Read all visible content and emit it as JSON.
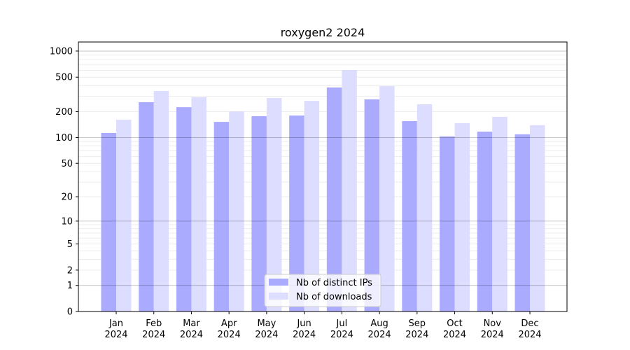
{
  "chart_data": {
    "type": "bar",
    "title": "roxygen2 2024",
    "xlabel": "",
    "ylabel": "",
    "yscale": "symlog",
    "ylim": [
      0,
      1270
    ],
    "yticks": [
      0,
      1,
      2,
      5,
      10,
      20,
      50,
      100,
      200,
      500,
      1000
    ],
    "grid": true,
    "legend_position": "lower center",
    "categories": [
      "Jan\n2024",
      "Feb\n2024",
      "Mar\n2024",
      "Apr\n2024",
      "May\n2024",
      "Jun\n2024",
      "Jul\n2024",
      "Aug\n2024",
      "Sep\n2024",
      "Oct\n2024",
      "Nov\n2024",
      "Dec\n2024"
    ],
    "series": [
      {
        "name": "Nb of distinct IPs",
        "color": "#aaaaff",
        "values": [
          113,
          257,
          225,
          152,
          177,
          180,
          380,
          277,
          155,
          103,
          117,
          109
        ]
      },
      {
        "name": "Nb of downloads",
        "color": "#ddddff",
        "values": [
          161,
          346,
          293,
          201,
          287,
          266,
          605,
          394,
          243,
          147,
          174,
          139
        ]
      }
    ]
  }
}
